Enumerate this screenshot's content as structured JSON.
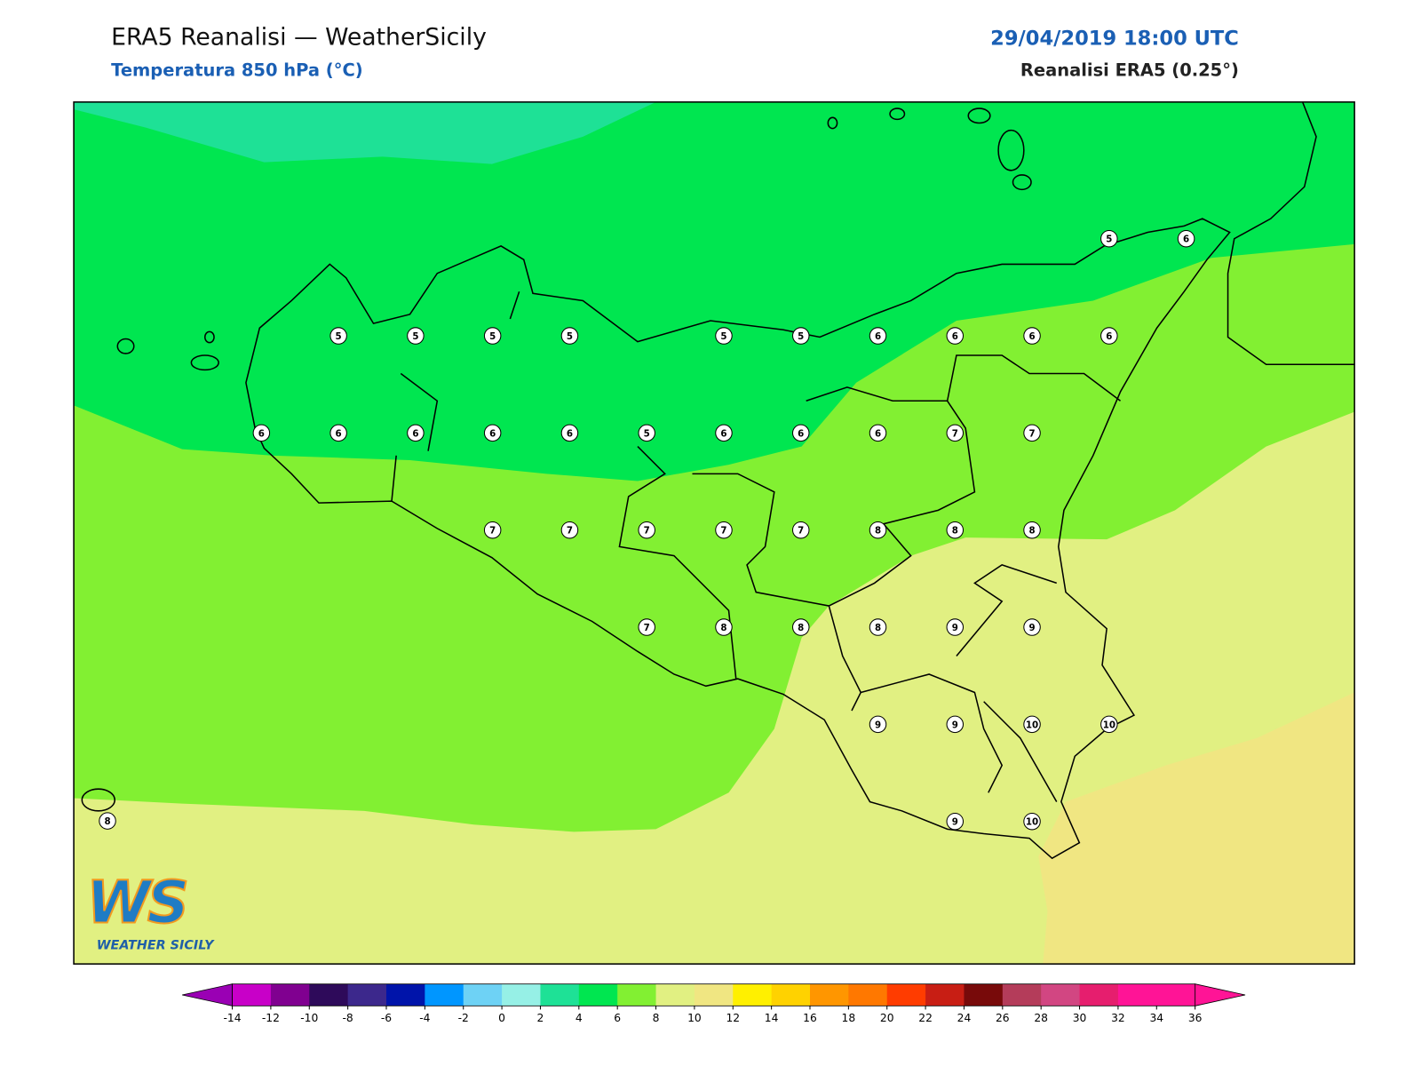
{
  "header": {
    "title": "ERA5 Reanalisi — WeatherSicily",
    "subtitle": "Temperatura 850 hPa (°C)",
    "date": "29/04/2019 18:00 UTC",
    "model": "Reanalisi ERA5 (0.25°)"
  },
  "map": {
    "stations": [
      [
        5,
        6
      ],
      [
        5,
        5,
        5,
        5,
        5,
        5,
        6,
        6,
        6,
        6
      ],
      [
        6,
        6,
        6,
        6,
        6,
        5,
        6,
        6,
        6,
        7,
        7
      ],
      [
        7,
        7,
        7,
        7,
        7,
        8,
        8,
        8
      ],
      [
        7,
        8,
        8,
        8,
        9,
        9
      ],
      [
        9,
        9,
        10,
        10
      ],
      [
        8,
        9,
        10
      ]
    ]
  },
  "logo": {
    "mark": "WS",
    "name": "WEATHER SICILY"
  },
  "colorbar": {
    "ticks": [
      -14,
      -12,
      -10,
      -8,
      -6,
      -4,
      -2,
      0,
      2,
      4,
      6,
      8,
      10,
      12,
      14,
      16,
      18,
      20,
      22,
      24,
      26,
      28,
      30,
      32,
      34,
      36
    ],
    "under": "#9a00b4",
    "over": "#ff1496",
    "colors": [
      "#c800c8",
      "#800090",
      "#2e0a5a",
      "#3c288c",
      "#0014aa",
      "#0096ff",
      "#6ed2f5",
      "#96f0e6",
      "#1ee196",
      "#00e650",
      "#82f032",
      "#e1f082",
      "#f0e682",
      "#fff000",
      "#ffd200",
      "#ff9600",
      "#ff7800",
      "#ff3c00",
      "#c81e14",
      "#780a0a",
      "#b43c5a",
      "#d24682",
      "#e61e6e",
      "#ff1496",
      "#ff1496"
    ]
  }
}
